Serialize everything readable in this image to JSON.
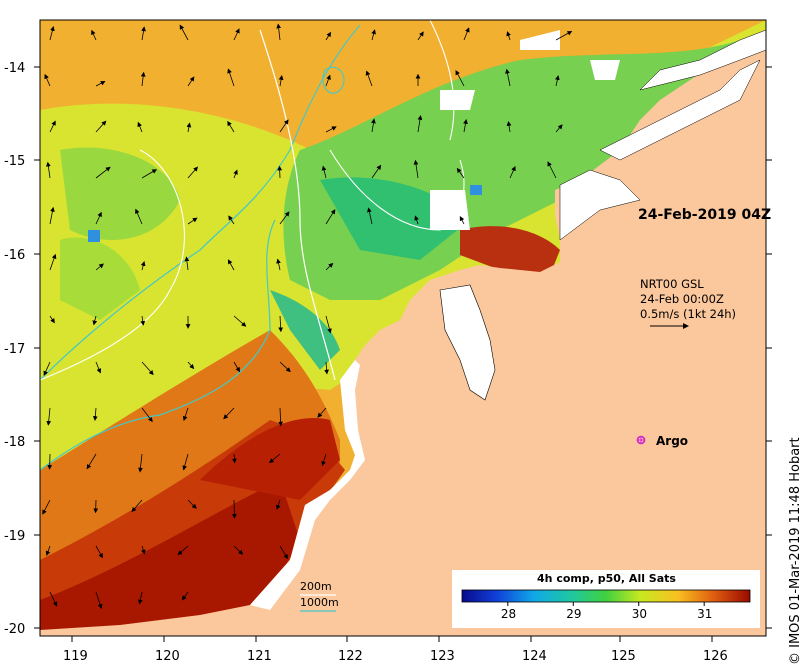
{
  "map": {
    "timestamp_label": "24-Feb-2019 04Z",
    "current_legend": {
      "line1": "NRT00 GSL",
      "line2": "24-Feb 00:00Z",
      "line3": "0.5m/s (1kt 24h)"
    },
    "argo_label": "Argo",
    "contour_legend": {
      "a": "200m",
      "b": "1000m"
    },
    "colorbar": {
      "title": "4h comp, p50, All Sats",
      "ticks": [
        "28",
        "29",
        "30",
        "31"
      ],
      "min": 27.3,
      "max": 31.7
    },
    "credit": "© IMOS 01-Mar-2019 11:48 Hobart",
    "lon_ticks": [
      "119",
      "120",
      "121",
      "122",
      "123",
      "124",
      "125",
      "126"
    ],
    "lat_ticks": [
      "-14",
      "-15",
      "-16",
      "-17",
      "-18",
      "-19",
      "-20"
    ],
    "colors": {
      "land": "#fbc79c",
      "contour_200": "#ffffff",
      "contour_1000": "#44c8c8",
      "argo": "#d020d0"
    }
  }
}
